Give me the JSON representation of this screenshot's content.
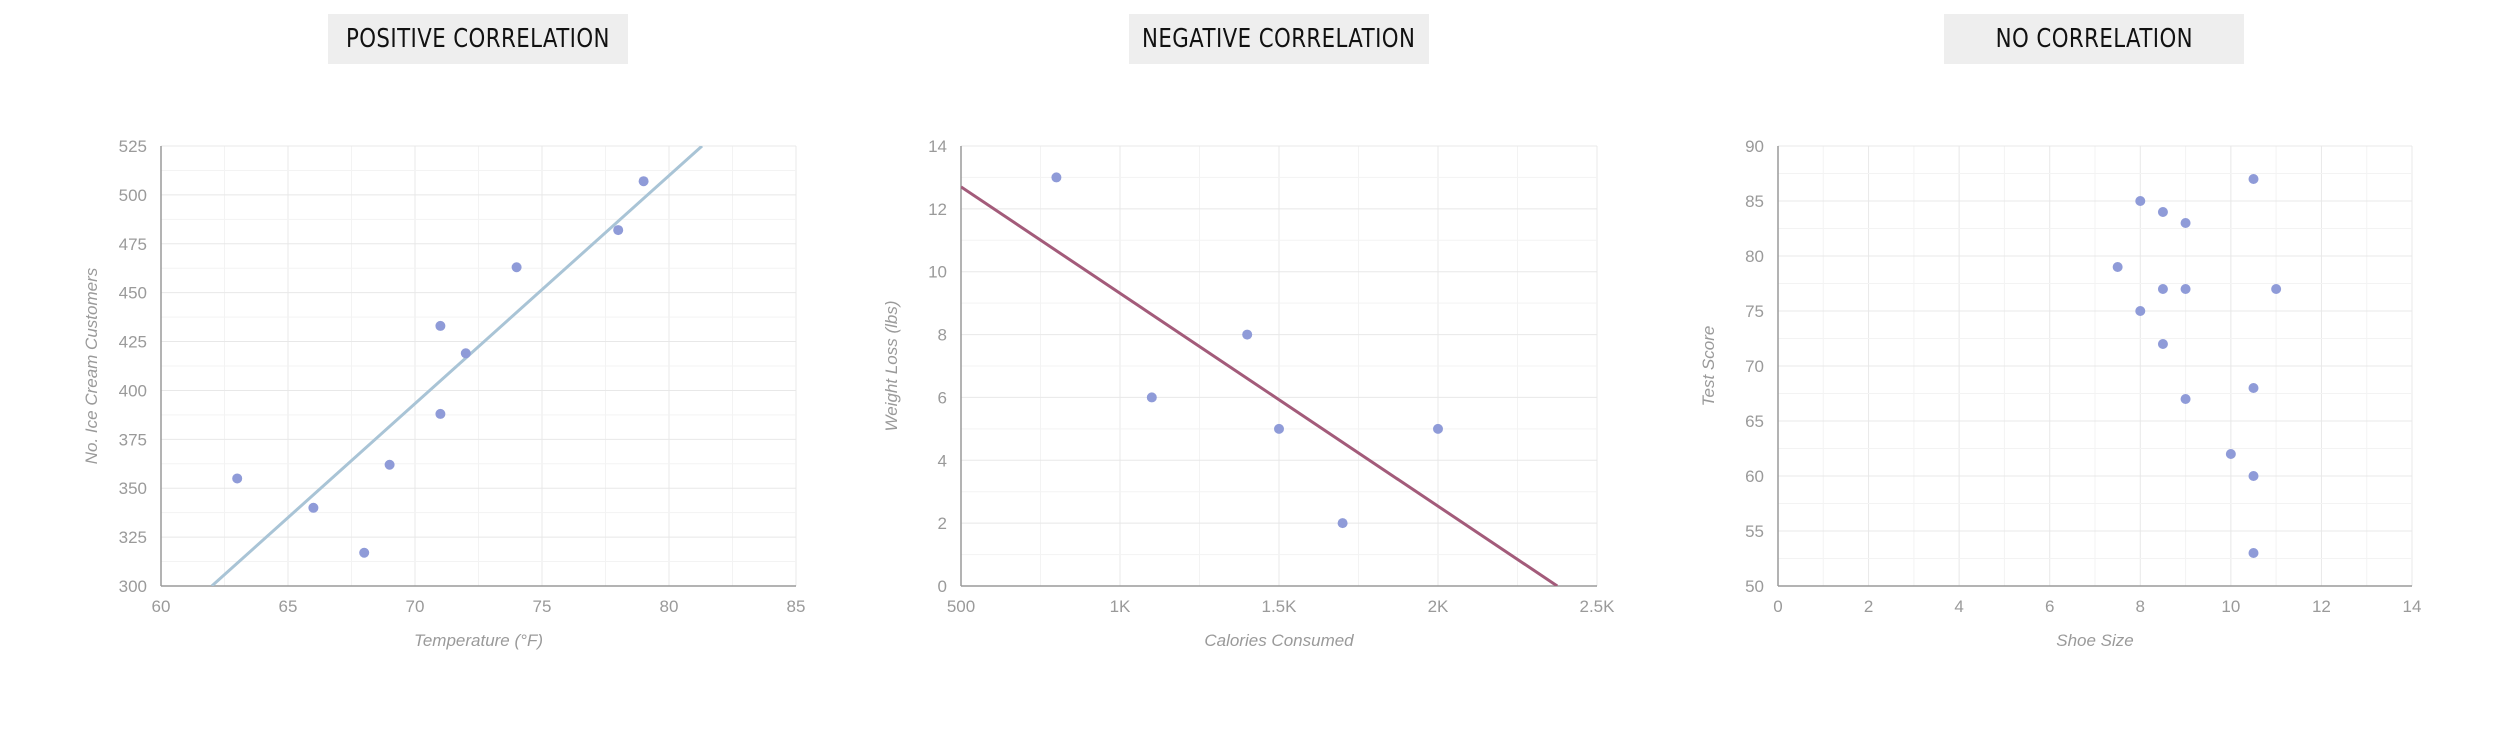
{
  "colors": {
    "point": "#8f9bd8",
    "grid": "#eeeeee",
    "axis": "#9a9a9a",
    "text": "#9a9a9a"
  },
  "chart_data": [
    {
      "type": "scatter",
      "title": "POSITIVE CORRELATION",
      "xlabel": "Temperature (°F)",
      "ylabel": "No. Ice Cream Customers",
      "xlim": [
        60,
        85
      ],
      "ylim": [
        300,
        525
      ],
      "xticks": [
        60,
        65,
        70,
        75,
        80,
        85
      ],
      "xtick_labels": [
        "60",
        "65",
        "70",
        "75",
        "80",
        "85"
      ],
      "yticks": [
        300,
        325,
        350,
        375,
        400,
        425,
        450,
        475,
        500,
        525
      ],
      "ytick_labels": [
        "300",
        "325",
        "350",
        "375",
        "400",
        "425",
        "450",
        "475",
        "500",
        "525"
      ],
      "grid": true,
      "points": [
        [
          63,
          355
        ],
        [
          66,
          340
        ],
        [
          68,
          317
        ],
        [
          69,
          362
        ],
        [
          71,
          388
        ],
        [
          71,
          433
        ],
        [
          72,
          419
        ],
        [
          74,
          463
        ],
        [
          78,
          482
        ],
        [
          79,
          507
        ]
      ],
      "trendline": {
        "color": "#a9c4d6",
        "from": [
          62,
          300
        ],
        "to": [
          81.3,
          525
        ]
      }
    },
    {
      "type": "scatter",
      "title": "NEGATIVE CORRELATION",
      "xlabel": "Calories Consumed",
      "ylabel": "Weight Loss (lbs)",
      "xlim": [
        500,
        2500
      ],
      "ylim": [
        0,
        14
      ],
      "xticks": [
        500,
        1000,
        1500,
        2000,
        2500
      ],
      "xtick_labels": [
        "500",
        "1K",
        "1.5K",
        "2K",
        "2.5K"
      ],
      "yticks": [
        0,
        2,
        4,
        6,
        8,
        10,
        12,
        14
      ],
      "ytick_labels": [
        "0",
        "2",
        "4",
        "6",
        "8",
        "10",
        "12",
        "14"
      ],
      "grid": true,
      "points": [
        [
          800,
          13
        ],
        [
          1100,
          6
        ],
        [
          1400,
          8
        ],
        [
          1500,
          5
        ],
        [
          1700,
          2
        ],
        [
          2000,
          5
        ]
      ],
      "trendline": {
        "color": "#a35b7a",
        "from": [
          500,
          12.7
        ],
        "to": [
          2375,
          0
        ]
      }
    },
    {
      "type": "scatter",
      "title": "NO CORRELATION",
      "xlabel": "Shoe Size",
      "ylabel": "Test Score",
      "xlim": [
        0,
        14
      ],
      "ylim": [
        50,
        90
      ],
      "xticks": [
        0,
        2,
        4,
        6,
        8,
        10,
        12,
        14
      ],
      "xtick_labels": [
        "0",
        "2",
        "4",
        "6",
        "8",
        "10",
        "12",
        "14"
      ],
      "yticks": [
        50,
        55,
        60,
        65,
        70,
        75,
        80,
        85,
        90
      ],
      "ytick_labels": [
        "50",
        "55",
        "60",
        "65",
        "70",
        "75",
        "80",
        "85",
        "90"
      ],
      "grid": true,
      "points": [
        [
          10.5,
          87
        ],
        [
          8,
          85
        ],
        [
          8.5,
          84
        ],
        [
          9,
          83
        ],
        [
          7.5,
          79
        ],
        [
          8.5,
          77
        ],
        [
          9,
          77
        ],
        [
          11,
          77
        ],
        [
          8,
          75
        ],
        [
          8.5,
          72
        ],
        [
          10.5,
          68
        ],
        [
          9,
          67
        ],
        [
          10,
          62
        ],
        [
          10.5,
          60
        ],
        [
          10.5,
          53
        ]
      ],
      "trendline": null
    }
  ]
}
